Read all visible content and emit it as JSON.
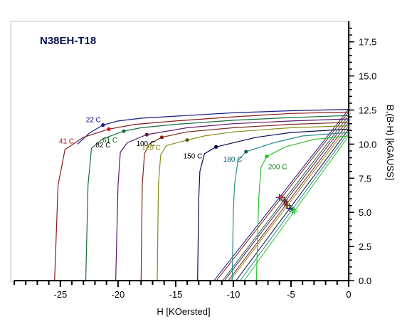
{
  "chart_data": {
    "type": "line",
    "title": "N38EH-T18",
    "xlabel": "H  [KOersted]",
    "ylabel": "B,(B-H) [kGAUSS]",
    "xlim": [
      -29,
      0
    ],
    "ylim": [
      0,
      19
    ],
    "x_ticks": [
      -25,
      -20,
      -15,
      -10,
      -5,
      0
    ],
    "x_tick_labels": [
      "-25",
      "-20",
      "-15",
      "-10",
      "-5",
      "0"
    ],
    "y_ticks": [
      0,
      2.5,
      5,
      7.5,
      10,
      12.5,
      15,
      17.5
    ],
    "y_tick_labels": [
      "0.0",
      "2.5",
      "5.0",
      "7.5",
      "10.0",
      "12.5",
      "15.0",
      "17.5"
    ],
    "y_axis_position": "right",
    "grid": false,
    "series": [
      {
        "name": "22 C",
        "color": "#1a1a8a",
        "label_color": "#000080",
        "knee": [
          -21.3,
          11.4
        ],
        "mark_color": "#1a1a8a",
        "intrinsic": [
          [
            0,
            12.55
          ],
          [
            -5,
            12.45
          ],
          [
            -10,
            12.3
          ],
          [
            -15,
            12.05
          ],
          [
            -18,
            11.9
          ],
          [
            -20,
            11.7
          ],
          [
            -21.3,
            11.4
          ],
          [
            -22.5,
            10.8
          ],
          [
            -23.5,
            10.0
          ]
        ],
        "normal": [
          [
            0,
            12.55
          ],
          [
            -6.0,
            6.1
          ]
        ]
      },
      {
        "name": "41 C",
        "color": "#8b1a1a",
        "label_color": "#c00000",
        "knee": [
          -20.8,
          11.1
        ],
        "mark_color": "#e01010",
        "intrinsic": [
          [
            0,
            12.35
          ],
          [
            -5,
            12.25
          ],
          [
            -10,
            12.0
          ],
          [
            -15,
            11.7
          ],
          [
            -18.5,
            11.45
          ],
          [
            -20.8,
            11.1
          ],
          [
            -23,
            10.5
          ],
          [
            -24.6,
            9.6
          ],
          [
            -25.2,
            7.0
          ],
          [
            -25.5,
            0
          ]
        ],
        "normal": [
          [
            0,
            12.35
          ],
          [
            -5.8,
            6.1
          ]
        ]
      },
      {
        "name": "61 C",
        "color": "#1a6b3a",
        "label_color": "#006000",
        "knee": [
          -19.5,
          10.95
        ],
        "mark_color": "#1a6b3a",
        "intrinsic": [
          [
            0,
            12.1
          ],
          [
            -5,
            11.95
          ],
          [
            -10,
            11.75
          ],
          [
            -15,
            11.45
          ],
          [
            -18,
            11.2
          ],
          [
            -19.5,
            10.95
          ],
          [
            -21.3,
            10.4
          ],
          [
            -22.3,
            9.7
          ],
          [
            -22.6,
            7.0
          ],
          [
            -22.8,
            0
          ]
        ],
        "normal": [
          [
            0,
            12.1
          ],
          [
            -5.6,
            5.9
          ]
        ]
      },
      {
        "name": "82 C",
        "color": "#5a1a6a",
        "label_color": "#000000",
        "knee": [
          -17.5,
          10.7
        ],
        "mark_color": "#6a1a3a",
        "intrinsic": [
          [
            0,
            11.85
          ],
          [
            -5,
            11.7
          ],
          [
            -10,
            11.5
          ],
          [
            -14,
            11.2
          ],
          [
            -17.5,
            10.7
          ],
          [
            -19.2,
            10.1
          ],
          [
            -19.8,
            9.4
          ],
          [
            -20.0,
            7.0
          ],
          [
            -20.2,
            0
          ]
        ],
        "normal": [
          [
            0,
            11.85
          ],
          [
            -5.5,
            5.8
          ]
        ]
      },
      {
        "name": "100 C",
        "color": "#7a2a1a",
        "label_color": "#000000",
        "knee": [
          -16.2,
          10.5
        ],
        "mark_color": "#8b1a1a",
        "intrinsic": [
          [
            0,
            11.6
          ],
          [
            -5,
            11.45
          ],
          [
            -10,
            11.2
          ],
          [
            -14,
            10.9
          ],
          [
            -16.2,
            10.5
          ],
          [
            -17.3,
            10.0
          ],
          [
            -17.7,
            9.3
          ],
          [
            -17.9,
            7.0
          ],
          [
            -18.0,
            0
          ]
        ],
        "normal": [
          [
            0,
            11.6
          ],
          [
            -5.4,
            5.6
          ]
        ]
      },
      {
        "name": "120 C",
        "color": "#8a8a20",
        "label_color": "#808000",
        "knee": [
          -14.0,
          10.3
        ],
        "mark_color": "#5a5a10",
        "intrinsic": [
          [
            0,
            11.35
          ],
          [
            -5,
            11.2
          ],
          [
            -10,
            10.9
          ],
          [
            -12.5,
            10.6
          ],
          [
            -14.0,
            10.3
          ],
          [
            -15.8,
            9.9
          ],
          [
            -16.3,
            9.2
          ],
          [
            -16.5,
            7.0
          ],
          [
            -16.6,
            0
          ]
        ],
        "normal": [
          [
            0,
            11.35
          ],
          [
            -5.3,
            5.5
          ]
        ]
      },
      {
        "name": "150 C",
        "color": "#0a0a50",
        "label_color": "#000000",
        "knee": [
          -11.5,
          9.8
        ],
        "mark_color": "#0a0a50",
        "intrinsic": [
          [
            0,
            11.1
          ],
          [
            -5,
            10.85
          ],
          [
            -8,
            10.5
          ],
          [
            -11.5,
            9.8
          ],
          [
            -12.5,
            9.3
          ],
          [
            -12.9,
            8.0
          ],
          [
            -13.0,
            6.0
          ],
          [
            -13.1,
            0
          ]
        ],
        "normal": [
          [
            0,
            11.1
          ],
          [
            -5.1,
            5.3
          ]
        ]
      },
      {
        "name": "180 C",
        "color": "#2a8a8a",
        "label_color": "#006060",
        "knee": [
          -8.9,
          9.45
        ],
        "mark_color": "#1a5a5a",
        "intrinsic": [
          [
            0,
            10.85
          ],
          [
            -4,
            10.6
          ],
          [
            -6.5,
            10.1
          ],
          [
            -8.9,
            9.45
          ],
          [
            -9.6,
            8.8
          ],
          [
            -9.9,
            7.0
          ],
          [
            -10.0,
            5.0
          ],
          [
            -10.1,
            0
          ]
        ],
        "normal": [
          [
            0,
            10.85
          ],
          [
            -4.9,
            5.2
          ]
        ]
      },
      {
        "name": "200 C",
        "color": "#30c030",
        "label_color": "#008000",
        "knee": [
          -7.1,
          9.1
        ],
        "mark_color": "#10d010",
        "intrinsic": [
          [
            0,
            10.6
          ],
          [
            -3,
            10.35
          ],
          [
            -5.5,
            9.8
          ],
          [
            -7.1,
            9.1
          ],
          [
            -7.6,
            8.3
          ],
          [
            -7.8,
            6.0
          ],
          [
            -7.9,
            3.0
          ],
          [
            -8.0,
            0
          ]
        ],
        "normal": [
          [
            0,
            10.6
          ],
          [
            -4.7,
            5.1
          ]
        ]
      }
    ]
  }
}
